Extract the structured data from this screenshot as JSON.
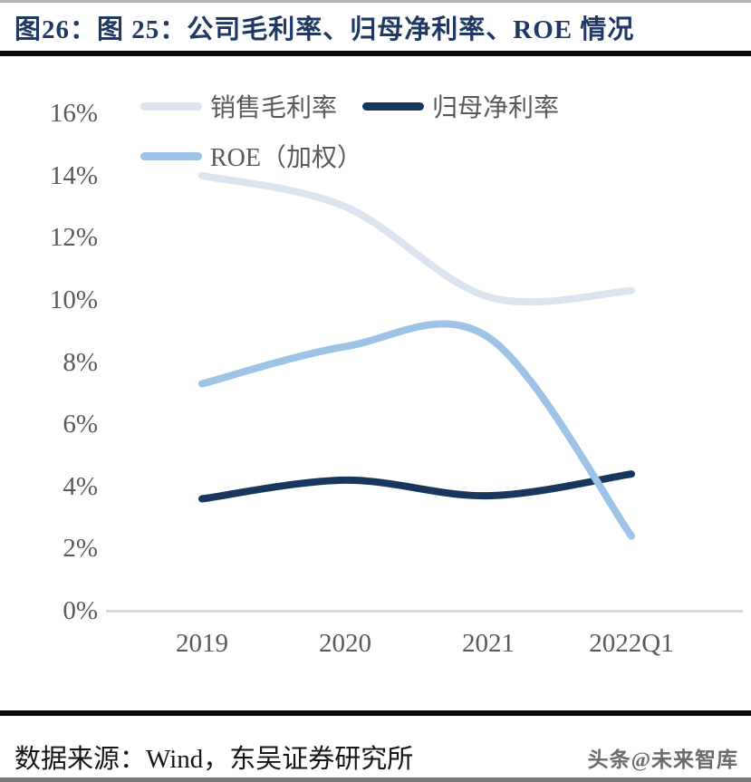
{
  "page": {
    "title": "图26：图 25：公司毛利率、归母净利率、ROE 情况",
    "footer": {
      "source_label": "数据来源：Wind，东吴证券研究所",
      "watermark": "头条@未来智库"
    }
  },
  "colors": {
    "title_navy": "#1f3864",
    "axis_text_gray": "#595959",
    "axis_line_gray": "#d9d9d9",
    "heavy_rule_black": "#0a0a0a"
  },
  "chart_data": {
    "type": "line",
    "title": "公司毛利率、归母净利率、ROE 情况",
    "categories": [
      "2019",
      "2020",
      "2021",
      "2022Q1"
    ],
    "series": [
      {
        "name": "销售毛利率",
        "color": "#dce4f0",
        "values": [
          14.0,
          13.0,
          10.1,
          10.3
        ]
      },
      {
        "name": "归母净利率",
        "color": "#17375e",
        "values": [
          3.6,
          4.2,
          3.7,
          4.4
        ]
      },
      {
        "name": "ROE（加权）",
        "color": "#9dc3e6",
        "values": [
          7.3,
          8.5,
          8.8,
          2.4
        ]
      }
    ],
    "y_ticks": [
      "16%",
      "14%",
      "12%",
      "10%",
      "8%",
      "6%",
      "4%",
      "2%",
      "0%"
    ],
    "ylim": [
      0,
      16
    ],
    "xlabel": "",
    "ylabel": "",
    "grid": false,
    "smooth": true,
    "legend_position": "top-left"
  }
}
